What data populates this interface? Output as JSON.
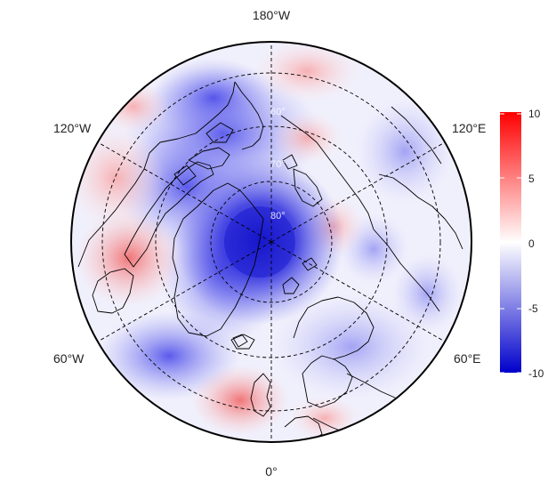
{
  "map": {
    "projection": "north-polar-stereographic",
    "grid_style": "dashed",
    "coastlines": true
  },
  "longitude_labels": {
    "top": "180°W",
    "upper_left": "120°W",
    "upper_right": "120°E",
    "lower_left": "60°W",
    "lower_right": "60°E",
    "bottom": "0°"
  },
  "latitude_labels": [
    "60°",
    "70°",
    "80°"
  ],
  "colorbar": {
    "min": -10,
    "max": 10,
    "ticks": [
      "10",
      "5",
      "0",
      "-5",
      "-10"
    ],
    "colors": {
      "high": "#ff0000",
      "mid": "#ffffff",
      "low": "#0000cc"
    }
  }
}
